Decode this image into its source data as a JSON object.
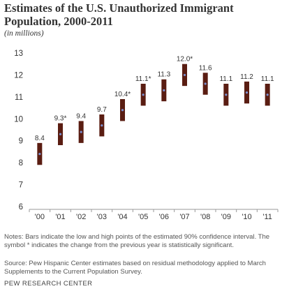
{
  "title": "Estimates of the U.S. Unauthorized Immigrant Population, 2000-2011",
  "subtitle": "(in millions)",
  "notes": "Notes: Bars indicate the low and high points of the estimated 90% confidence interval. The symbol * indicates the change from the previous year is statistically significant.",
  "source": "Source: Pew Hispanic Center estimates based on residual methodology applied to March Supplements to the Current Population Survey.",
  "brand": "PEW RESEARCH CENTER",
  "colors": {
    "bar": "#5a1d12",
    "point": "#7a8fd0",
    "axis": "#999999",
    "text": "#333333"
  },
  "chart_data": {
    "type": "bar",
    "subtype": "range-with-point",
    "categories": [
      "'00",
      "'01",
      "'02",
      "'03",
      "'04",
      "'05",
      "'06",
      "'07",
      "'08",
      "'09",
      "'10",
      "'11"
    ],
    "values": [
      8.4,
      9.3,
      9.4,
      9.7,
      10.4,
      11.1,
      11.3,
      12.0,
      11.6,
      11.1,
      11.2,
      11.1
    ],
    "low": [
      7.9,
      8.8,
      8.9,
      9.2,
      9.9,
      10.6,
      10.8,
      11.5,
      11.1,
      10.6,
      10.7,
      10.6
    ],
    "high": [
      8.9,
      9.8,
      9.9,
      10.2,
      10.9,
      11.6,
      11.8,
      12.5,
      12.1,
      11.6,
      11.7,
      11.6
    ],
    "labels": [
      "8.4",
      "9.3*",
      "9.4",
      "9.7",
      "10.4*",
      "11.1*",
      "11.3",
      "12.0*",
      "11.6",
      "11.1",
      "11.2",
      "11.1"
    ],
    "ylim": [
      6,
      13
    ],
    "yticks": [
      "6",
      "7",
      "8",
      "9",
      "10",
      "11",
      "12",
      "13"
    ],
    "xlabel": "",
    "ylabel": "",
    "grid": false,
    "legend": "none"
  }
}
